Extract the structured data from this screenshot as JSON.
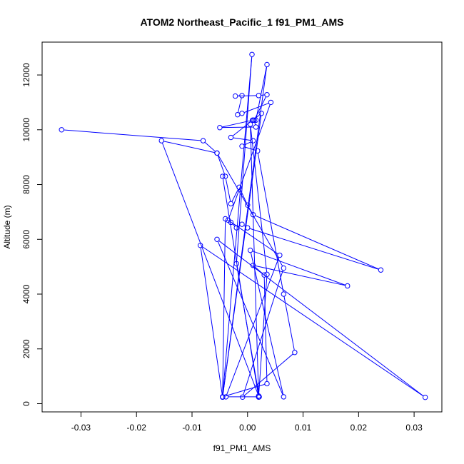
{
  "chart_data": {
    "type": "line",
    "title": "ATOM2 Northeast_Pacific_1 f91_PM1_AMS",
    "xlabel": "f91_PM1_AMS",
    "ylabel": "Altitude (m)",
    "xlim": [
      -0.037,
      0.035
    ],
    "ylim": [
      -300,
      13200
    ],
    "xticks": [
      -0.03,
      -0.02,
      -0.01,
      0.0,
      0.01,
      0.02,
      0.03
    ],
    "xtick_labels": [
      "-0.03",
      "-0.02",
      "-0.01",
      "0.00",
      "0.01",
      "0.02",
      "0.03"
    ],
    "yticks": [
      0,
      2000,
      4000,
      6000,
      8000,
      10000,
      12000
    ],
    "ytick_labels": [
      "0",
      "2000",
      "4000",
      "6000",
      "8000",
      "10000",
      "12000"
    ],
    "grid": false,
    "series": [
      {
        "color": "#0000ff",
        "marker": "open-circle",
        "points": [
          [
            -0.0335,
            10000
          ],
          [
            -0.008,
            9600
          ],
          [
            -0.0055,
            9150
          ],
          [
            -0.004,
            8300
          ],
          [
            -0.003,
            7300
          ],
          [
            -0.0015,
            7900
          ],
          [
            0.0,
            7250
          ],
          [
            0.001,
            6900
          ],
          [
            0.024,
            4880
          ],
          [
            0.0,
            6420
          ],
          [
            -0.001,
            6550
          ],
          [
            -0.002,
            6420
          ],
          [
            -0.003,
            6620
          ],
          [
            -0.004,
            6750
          ],
          [
            -0.0045,
            250
          ],
          [
            0.0035,
            730
          ],
          [
            0.003,
            4700
          ],
          [
            0.001,
            5050
          ],
          [
            0.018,
            4300
          ],
          [
            0.0005,
            5600
          ],
          [
            0.0065,
            250
          ],
          [
            -0.0055,
            6000
          ],
          [
            0.032,
            230
          ],
          [
            -0.0085,
            5780
          ],
          [
            -0.0045,
            240
          ],
          [
            0.0025,
            10600
          ],
          [
            0.001,
            10350
          ],
          [
            0.0015,
            10350
          ],
          [
            0.0035,
            12380
          ],
          [
            -0.0045,
            240
          ],
          [
            0.0008,
            12750
          ],
          [
            -0.002,
            5110
          ],
          [
            0.0021,
            250
          ],
          [
            -0.0039,
            250
          ],
          [
            0.0058,
            5420
          ],
          [
            -0.0035,
            6700
          ],
          [
            0.0042,
            11000
          ],
          [
            -0.001,
            10600
          ],
          [
            -0.0018,
            10550
          ],
          [
            -0.001,
            11250
          ],
          [
            -0.0022,
            11230
          ],
          [
            0.002,
            11250
          ],
          [
            0.0035,
            11280
          ],
          [
            0.0012,
            10350
          ],
          [
            0.0015,
            10100
          ],
          [
            -0.005,
            10080
          ],
          [
            0.0009,
            10350
          ],
          [
            -0.003,
            9720
          ],
          [
            0.001,
            9600
          ],
          [
            -0.001,
            9400
          ],
          [
            0.0018,
            9230
          ],
          [
            0.0065,
            4000
          ],
          [
            0.0085,
            1870
          ],
          [
            -0.0009,
            240
          ],
          [
            0.0065,
            4950
          ],
          [
            -0.0055,
            9150
          ],
          [
            -0.0155,
            9600
          ],
          [
            0.002,
            280
          ],
          [
            0.0035,
            4720
          ],
          [
            0.0005,
            10200
          ],
          [
            0.002,
            240
          ],
          [
            -0.0045,
            8300
          ]
        ]
      }
    ]
  }
}
